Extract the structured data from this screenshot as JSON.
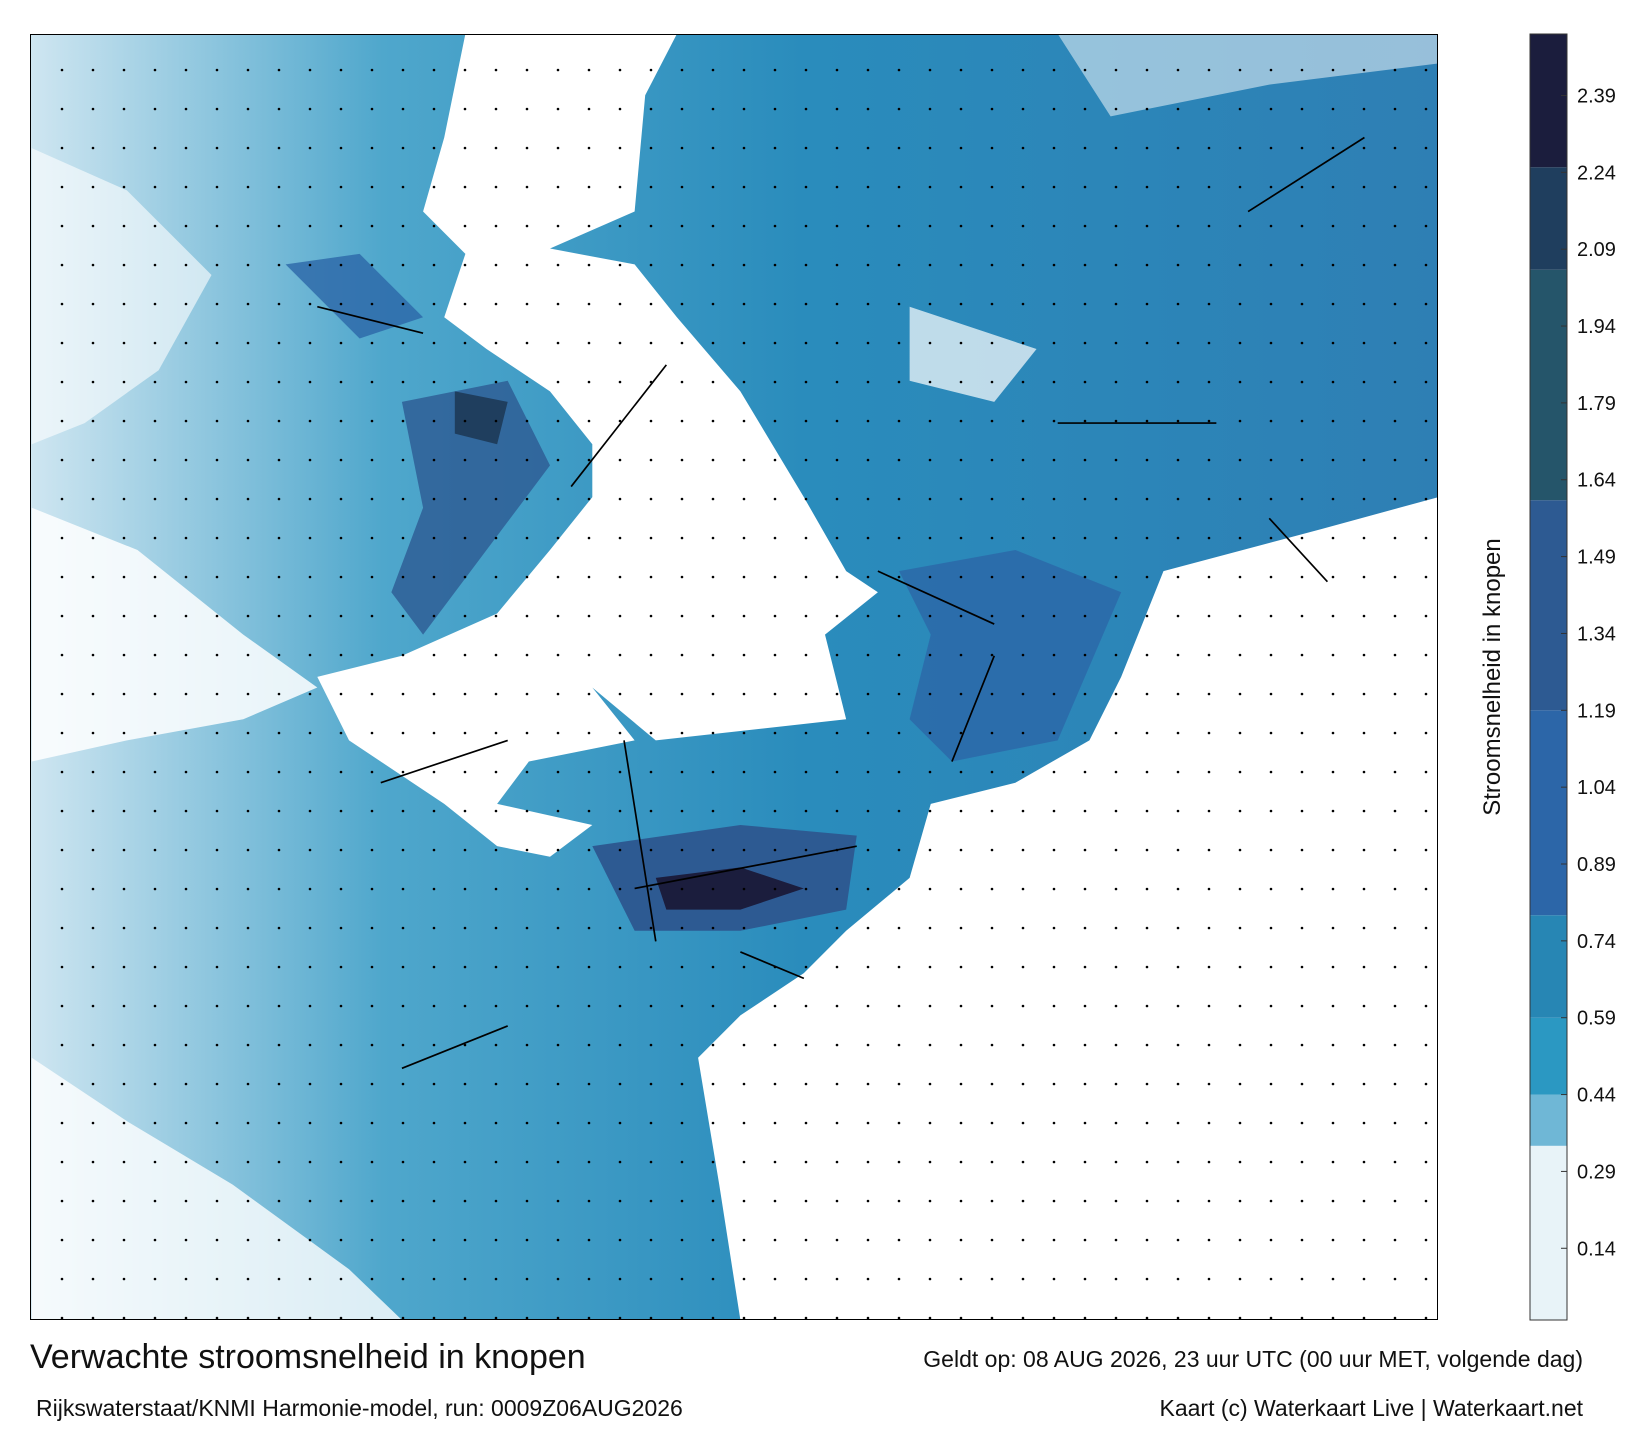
{
  "header": {
    "title": "Verwachte stroomsnelheid in knopen",
    "valid": "Geldt op: 08 AUG 2026, 23 uur UTC (00 uur MET, volgende dag)",
    "model": "Rijkswaterstaat/KNMI Harmonie-model, run: 0009Z06AUG2026",
    "credit": "Kaart (c) Waterkaart Live | Waterkaart.net"
  },
  "colorbar": {
    "label": "Stroomsnelheid in knopen",
    "lim": [
      0,
      2.51
    ],
    "ticks": [
      0.14,
      0.29,
      0.44,
      0.59,
      0.74,
      0.89,
      1.04,
      1.19,
      1.34,
      1.49,
      1.64,
      1.79,
      1.94,
      2.09,
      2.24,
      2.39
    ],
    "bands": [
      {
        "from": 0,
        "to": 0.34,
        "color": "#e8f3f8"
      },
      {
        "from": 0.34,
        "to": 0.44,
        "color": "#6fb7d6"
      },
      {
        "from": 0.44,
        "to": 0.59,
        "color": "#2b98c2"
      },
      {
        "from": 0.59,
        "to": 0.79,
        "color": "#2786b4"
      },
      {
        "from": 0.79,
        "to": 1.19,
        "color": "#2c66a8"
      },
      {
        "from": 1.19,
        "to": 1.6,
        "color": "#2d5a92"
      },
      {
        "from": 1.6,
        "to": 2.05,
        "color": "#25556a"
      },
      {
        "from": 2.05,
        "to": 2.25,
        "color": "#1f3e5e"
      },
      {
        "from": 2.25,
        "to": 2.51,
        "color": "#1b1d3d"
      }
    ]
  }
}
